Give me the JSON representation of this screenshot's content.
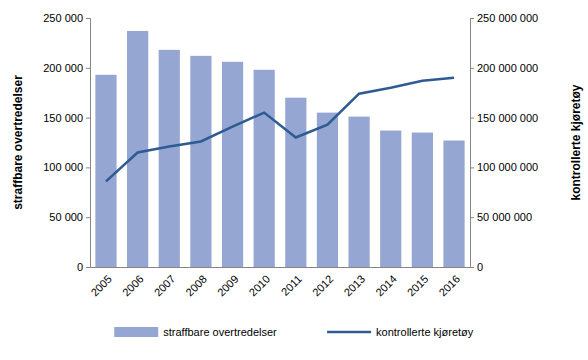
{
  "chart_data": {
    "type": "bar",
    "categories": [
      "2005",
      "2006",
      "2007",
      "2008",
      "2009",
      "2010",
      "2011",
      "2012",
      "2013",
      "2014",
      "2015",
      "2016"
    ],
    "series": [
      {
        "name": "straffbare overtredelser",
        "type": "bar",
        "color": "#94a6d1",
        "values": [
          193000,
          237000,
          218000,
          212000,
          206000,
          198000,
          170000,
          155000,
          151000,
          137000,
          135000,
          127000
        ]
      },
      {
        "name": "kontrollerte kjøretøy",
        "type": "line",
        "color": "#2f5b93",
        "axis": "y2",
        "values": [
          86000000,
          115000000,
          121000000,
          126000000,
          141000000,
          155000000,
          130000000,
          143000000,
          174000000,
          180000000,
          187000000,
          190000000
        ]
      }
    ],
    "y_label": "straffbare overtredelser",
    "y2_label": "kontrollerte kjøretøy",
    "ylim": [
      0,
      250000
    ],
    "yticks": [
      0,
      {
        "value": 50000,
        "label": "50 000"
      },
      {
        "value": 100000,
        "label": "100 000"
      },
      {
        "value": 150000,
        "label": "150 000"
      },
      {
        "value": 200000,
        "label": "200 000"
      },
      {
        "value": 250000,
        "label": "250 000"
      }
    ],
    "y2lim": [
      0,
      250000000
    ],
    "y2ticks": [
      0,
      {
        "value": 50000000,
        "label": "50 000 000"
      },
      {
        "value": 100000000,
        "label": "100 000 000"
      },
      {
        "value": 150000000,
        "label": "150 000 000"
      },
      {
        "value": 200000000,
        "label": "200 000 000"
      },
      {
        "value": 250000000,
        "label": "250 000 000"
      }
    ],
    "grid": false,
    "legend": "bottom"
  }
}
